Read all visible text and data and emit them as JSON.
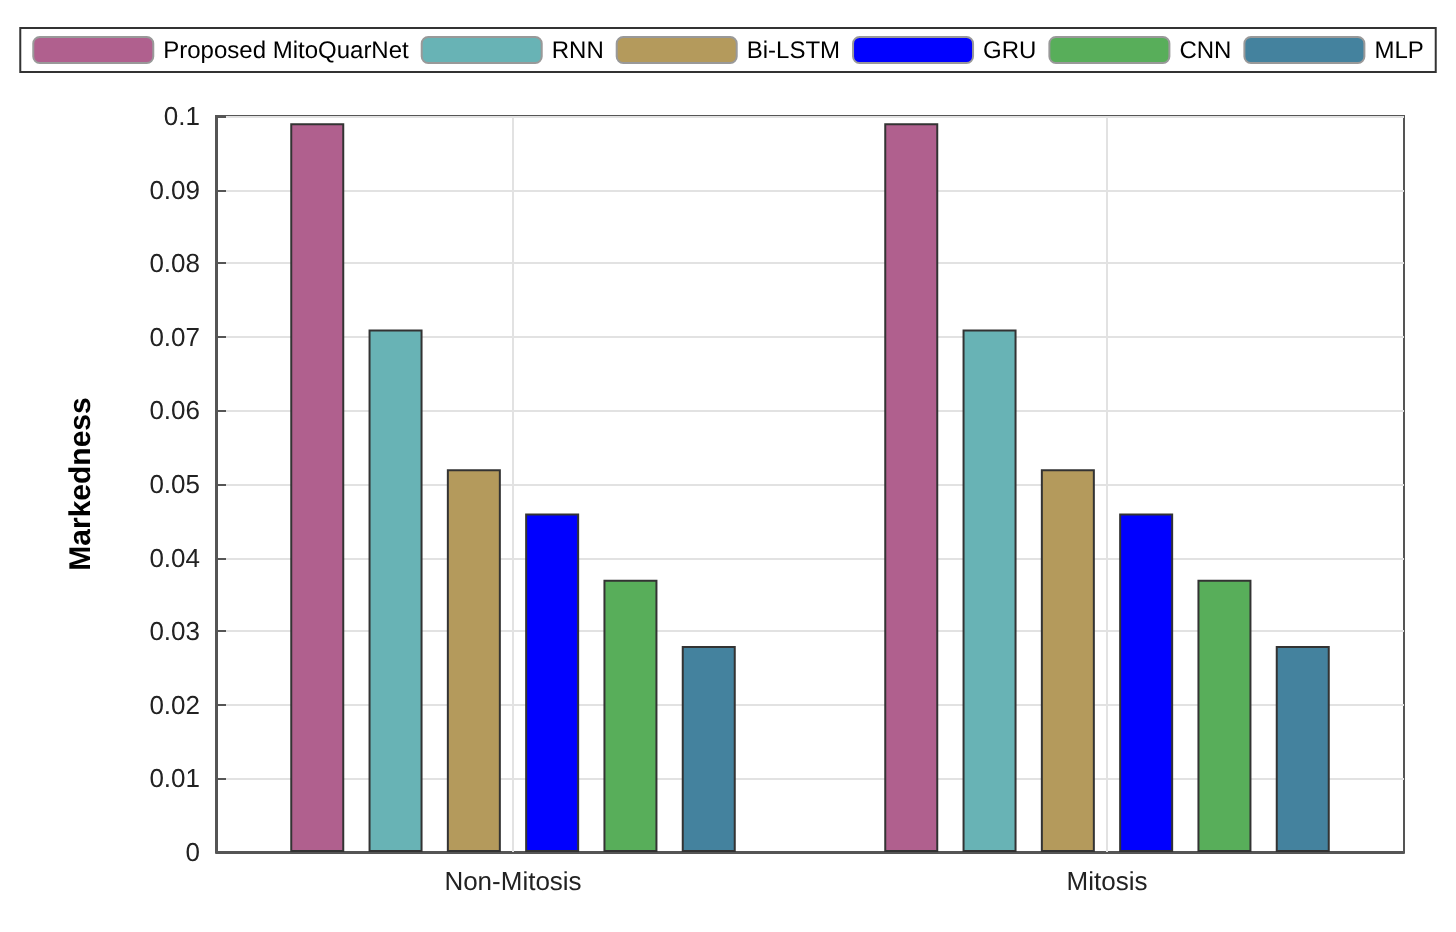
{
  "chart_data": {
    "type": "bar",
    "ylabel": "Markedness",
    "categories": [
      "Non-Mitosis",
      "Mitosis"
    ],
    "series": [
      {
        "name": "Proposed MitoQuarNet",
        "color": "#b0608e",
        "values": [
          0.099,
          0.099
        ]
      },
      {
        "name": "RNN",
        "color": "#68b3b5",
        "values": [
          0.071,
          0.071
        ]
      },
      {
        "name": "Bi-LSTM",
        "color": "#b49a5c",
        "values": [
          0.052,
          0.052
        ]
      },
      {
        "name": "GRU",
        "color": "#0000ff",
        "values": [
          0.046,
          0.046
        ]
      },
      {
        "name": "CNN",
        "color": "#58ae5a",
        "values": [
          0.037,
          0.037
        ]
      },
      {
        "name": "MLP",
        "color": "#44829e",
        "values": [
          0.028,
          0.028
        ]
      }
    ],
    "ylim": [
      0,
      0.1
    ],
    "yticks": [
      0,
      0.01,
      0.02,
      0.03,
      0.04,
      0.05,
      0.06,
      0.07,
      0.08,
      0.09,
      0.1
    ],
    "grid": true,
    "legend": "top"
  }
}
